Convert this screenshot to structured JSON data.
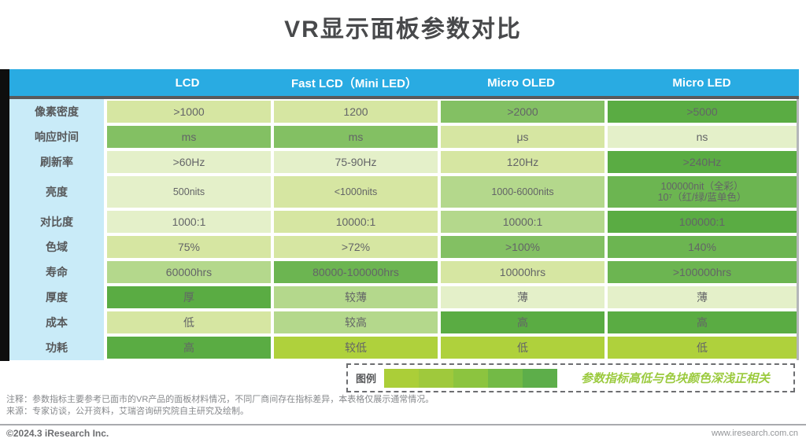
{
  "title": "VR显示面板参数对比",
  "chart_data": {
    "type": "table",
    "title": "VR显示面板参数对比",
    "columns": [
      "LCD",
      "Fast LCD（Mini LED）",
      "Micro OLED",
      "Micro LED"
    ],
    "rows": [
      {
        "parameter": "像素密度",
        "values": [
          ">1000",
          "1200",
          ">2000",
          ">5000"
        ],
        "shades": [
          "s2",
          "s2",
          "s4",
          "s5"
        ]
      },
      {
        "parameter": "响应时间",
        "values": [
          "ms",
          "ms",
          "μs",
          "ns"
        ],
        "shades": [
          "s4",
          "s4",
          "s2",
          "s1"
        ]
      },
      {
        "parameter": "刷新率",
        "values": [
          ">60Hz",
          "75-90Hz",
          "120Hz",
          ">240Hz"
        ],
        "shades": [
          "s1",
          "s1",
          "s2",
          "s5"
        ]
      },
      {
        "parameter": "亮度",
        "values": [
          "500nits",
          "<1000nits",
          "1000-6000nits",
          "100000nit（全彩）\n10⁷（红/绿/蓝单色）"
        ],
        "shades": [
          "s1",
          "s2",
          "s3",
          "s45"
        ]
      },
      {
        "parameter": "对比度",
        "values": [
          "1000:1",
          "10000:1",
          "10000:1",
          "100000:1"
        ],
        "shades": [
          "s1",
          "s2",
          "s3",
          "s5"
        ]
      },
      {
        "parameter": "色域",
        "values": [
          "75%",
          ">72%",
          ">100%",
          "140%"
        ],
        "shades": [
          "s2",
          "s2",
          "s4",
          "s45"
        ]
      },
      {
        "parameter": "寿命",
        "values": [
          "60000hrs",
          "80000-100000hrs",
          "10000hrs",
          ">100000hrs"
        ],
        "shades": [
          "s3",
          "s45",
          "s2",
          "s45"
        ]
      },
      {
        "parameter": "厚度",
        "values": [
          "厚",
          "较薄",
          "薄",
          "薄"
        ],
        "shades": [
          "s5",
          "s3",
          "s1",
          "s1"
        ]
      },
      {
        "parameter": "成本",
        "values": [
          "低",
          "较高",
          "高",
          "高"
        ],
        "shades": [
          "s2",
          "s3",
          "s5",
          "s5"
        ]
      },
      {
        "parameter": "功耗",
        "values": [
          "高",
          "较低",
          "低",
          "低"
        ],
        "shades": [
          "s5",
          "sy",
          "sy",
          "sy"
        ]
      }
    ],
    "legend_note": "参数指标高低与色块颜色深浅正相关"
  },
  "colors": {
    "header_bg": "#29ABE2",
    "label_column_bg": "#C9EBF8",
    "s1": "#E4F0C9",
    "s2": "#D6E6A2",
    "s3": "#B4D88C",
    "s4": "#83C063",
    "s45": "#6CB551",
    "s5": "#5AAC43",
    "sy": "#AFD13C",
    "legend_text": "#9BCA3E"
  },
  "legend": {
    "label": "图例",
    "note": "参数指标高低与色块颜色深浅正相关",
    "gradient": [
      "#ABCE38",
      "#9FC93C",
      "#8CC43F",
      "#73BA46",
      "#5DAE4A"
    ]
  },
  "footer": {
    "note1": "注释：参数指标主要参考已面市的VR产品的面板材料情况，不同厂商间存在指标差异，本表格仅展示通常情况。",
    "note2": "来源：专家访谈，公开资料，艾瑞咨询研究院自主研究及绘制。",
    "copyright": "©2024.3 iResearch Inc.",
    "website": "www.iresearch.com.cn"
  }
}
